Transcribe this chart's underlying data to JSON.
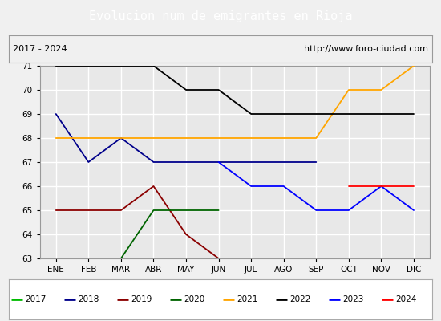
{
  "title": "Evolucion num de emigrantes en Rioja",
  "subtitle_left": "2017 - 2024",
  "subtitle_right": "http://www.foro-ciudad.com",
  "months": [
    "ENE",
    "FEB",
    "MAR",
    "ABR",
    "MAY",
    "JUN",
    "JUL",
    "AGO",
    "SEP",
    "OCT",
    "NOV",
    "DIC"
  ],
  "ylim": [
    63.0,
    71.0
  ],
  "yticks": [
    63.0,
    64.0,
    65.0,
    66.0,
    67.0,
    68.0,
    69.0,
    70.0,
    71.0
  ],
  "series": [
    {
      "year": "2017",
      "color": "#00bb00",
      "pts": [
        null,
        null,
        null,
        null,
        null,
        null,
        null,
        null,
        null,
        null,
        null,
        null
      ]
    },
    {
      "year": "2018",
      "color": "#00008b",
      "pts": [
        69,
        67,
        68,
        67,
        67,
        67,
        67,
        67,
        67,
        null,
        null,
        null
      ]
    },
    {
      "year": "2019",
      "color": "#8b0000",
      "pts": [
        65,
        65,
        65,
        66,
        64,
        63,
        null,
        null,
        null,
        null,
        null,
        null
      ]
    },
    {
      "year": "2020",
      "color": "#006400",
      "pts": [
        null,
        null,
        63,
        65,
        65,
        65,
        null,
        null,
        null,
        null,
        null,
        null
      ]
    },
    {
      "year": "2021",
      "color": "#ffa500",
      "pts": [
        68,
        68,
        68,
        68,
        68,
        68,
        68,
        68,
        68,
        70,
        70,
        71
      ]
    },
    {
      "year": "2022",
      "color": "#000000",
      "pts": [
        71,
        71,
        71,
        71,
        70,
        70,
        69,
        69,
        69,
        69,
        69,
        69
      ]
    },
    {
      "year": "2023",
      "color": "#0000ff",
      "pts": [
        null,
        null,
        null,
        null,
        null,
        67,
        66,
        66,
        65,
        65,
        66,
        65
      ]
    },
    {
      "year": "2024",
      "color": "#ff0000",
      "pts": [
        null,
        null,
        null,
        null,
        null,
        null,
        null,
        null,
        null,
        66,
        66,
        66
      ]
    }
  ],
  "title_bg_color": "#5b9bd5",
  "title_font_color": "#ffffff",
  "plot_bg_color": "#e8e8e8",
  "grid_color": "#ffffff",
  "subtitle_bg": "#f0f0f0",
  "subtitle_border": "#999999",
  "legend_border": "#aaaaaa",
  "fig_bg": "#f0f0f0"
}
